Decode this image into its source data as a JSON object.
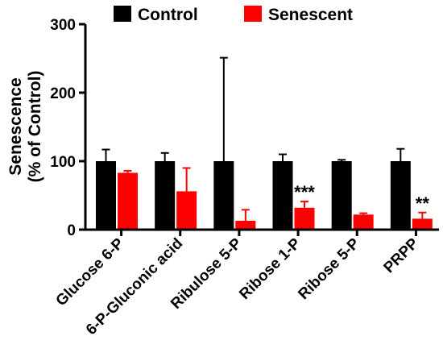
{
  "chart_data": {
    "type": "bar",
    "categories": [
      "Glucose 6-P",
      "6-P-Gluconic acid",
      "Ribulose 5-P",
      "Ribose 1-P",
      "Ribose 5-P",
      "PRPP"
    ],
    "series": [
      {
        "name": "Control",
        "color": "#000000",
        "values": [
          100,
          100,
          100,
          100,
          100,
          100
        ],
        "error": [
          17,
          12,
          151,
          10,
          2,
          18
        ]
      },
      {
        "name": "Senescent",
        "color": "#ff0000",
        "values": [
          83,
          56,
          13,
          32,
          22,
          16
        ],
        "error": [
          3,
          34,
          16,
          9,
          2,
          9
        ]
      }
    ],
    "annotations": [
      "",
      "",
      "",
      "***",
      "",
      "**"
    ],
    "ylabel_line1": "Senescence",
    "ylabel_line2": "(% of Control)",
    "xlabel": "",
    "title": "",
    "ylim": [
      0,
      300
    ],
    "yticks": [
      0,
      100,
      200,
      300
    ],
    "legend_position": "top",
    "grid": false
  }
}
